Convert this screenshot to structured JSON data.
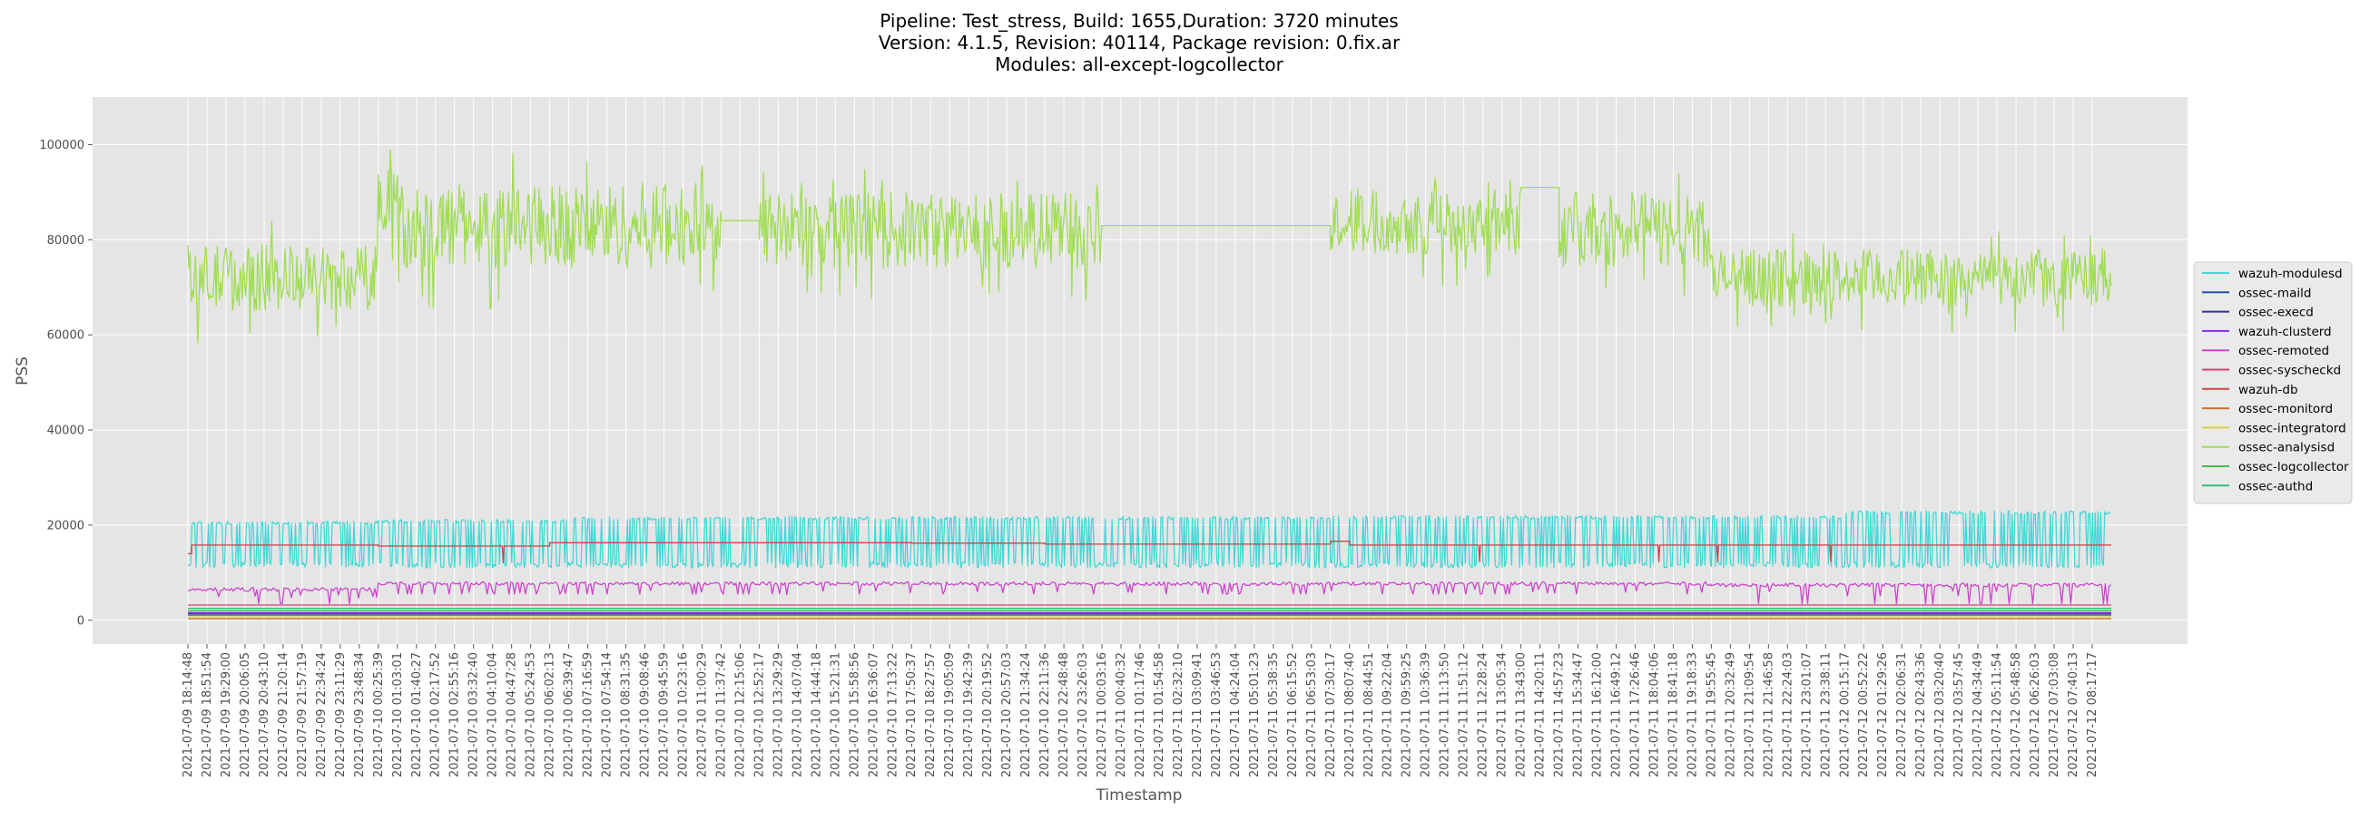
{
  "chart_data": {
    "type": "line",
    "title": "Pipeline: Test_stress, Build: 1655,Duration: 3720 minutes\nVersion: 4.1.5, Revision: 40114, Package revision: 0.fix.ar\nModules: all-except-logcollector",
    "title_lines": [
      "Pipeline: Test_stress, Build: 1655,Duration: 3720 minutes",
      "Version: 4.1.5, Revision: 40114, Package revision: 0.fix.ar",
      "Modules: all-except-logcollector"
    ],
    "xlabel": "Timestamp",
    "ylabel": "PSS",
    "ylim": [
      -5000,
      110000
    ],
    "y_ticks": [
      0,
      20000,
      40000,
      60000,
      80000,
      100000
    ],
    "grid": true,
    "legend_position": "center-right",
    "plot_background": "#e5e5e5",
    "x_ticks": [
      "2021-07-09 18:14:48",
      "2021-07-09 18:51:54",
      "2021-07-09 19:29:00",
      "2021-07-09 20:06:05",
      "2021-07-09 20:43:10",
      "2021-07-09 21:20:14",
      "2021-07-09 21:57:19",
      "2021-07-09 22:34:24",
      "2021-07-09 23:11:29",
      "2021-07-09 23:48:34",
      "2021-07-10 00:25:39",
      "2021-07-10 01:03:01",
      "2021-07-10 01:40:27",
      "2021-07-10 02:17:52",
      "2021-07-10 02:55:16",
      "2021-07-10 03:32:40",
      "2021-07-10 04:10:04",
      "2021-07-10 04:47:28",
      "2021-07-10 05:24:53",
      "2021-07-10 06:02:13",
      "2021-07-10 06:39:47",
      "2021-07-10 07:16:59",
      "2021-07-10 07:54:14",
      "2021-07-10 08:31:35",
      "2021-07-10 09:08:46",
      "2021-07-10 09:45:59",
      "2021-07-10 10:23:16",
      "2021-07-10 11:00:29",
      "2021-07-10 11:37:42",
      "2021-07-10 12:15:06",
      "2021-07-10 12:52:17",
      "2021-07-10 13:29:29",
      "2021-07-10 14:07:04",
      "2021-07-10 14:44:18",
      "2021-07-10 15:21:31",
      "2021-07-10 15:58:56",
      "2021-07-10 16:36:07",
      "2021-07-10 17:13:22",
      "2021-07-10 17:50:37",
      "2021-07-10 18:27:57",
      "2021-07-10 19:05:09",
      "2021-07-10 19:42:39",
      "2021-07-10 20:19:52",
      "2021-07-10 20:57:03",
      "2021-07-10 21:34:24",
      "2021-07-10 22:11:36",
      "2021-07-10 22:48:48",
      "2021-07-10 23:26:03",
      "2021-07-11 00:03:16",
      "2021-07-11 00:40:32",
      "2021-07-11 01:17:46",
      "2021-07-11 01:54:58",
      "2021-07-11 02:32:10",
      "2021-07-11 03:09:41",
      "2021-07-11 03:46:53",
      "2021-07-11 04:24:04",
      "2021-07-11 05:01:23",
      "2021-07-11 05:38:35",
      "2021-07-11 06:15:52",
      "2021-07-11 06:53:03",
      "2021-07-11 07:30:17",
      "2021-07-11 08:07:40",
      "2021-07-11 08:44:51",
      "2021-07-11 09:22:04",
      "2021-07-11 09:59:25",
      "2021-07-11 10:36:39",
      "2021-07-11 11:13:50",
      "2021-07-11 11:51:12",
      "2021-07-11 12:28:24",
      "2021-07-11 13:05:34",
      "2021-07-11 13:43:00",
      "2021-07-11 14:20:11",
      "2021-07-11 14:57:23",
      "2021-07-11 15:34:47",
      "2021-07-11 16:12:00",
      "2021-07-11 16:49:12",
      "2021-07-11 17:26:46",
      "2021-07-11 18:04:06",
      "2021-07-11 18:41:18",
      "2021-07-11 19:18:33",
      "2021-07-11 19:55:45",
      "2021-07-11 20:32:49",
      "2021-07-11 21:09:54",
      "2021-07-11 21:46:58",
      "2021-07-11 22:24:03",
      "2021-07-11 23:01:07",
      "2021-07-11 23:38:11",
      "2021-07-12 00:15:17",
      "2021-07-12 00:52:22",
      "2021-07-12 01:29:26",
      "2021-07-12 02:06:31",
      "2021-07-12 02:43:36",
      "2021-07-12 03:20:40",
      "2021-07-12 03:57:45",
      "2021-07-12 04:34:49",
      "2021-07-12 05:11:54",
      "2021-07-12 05:48:58",
      "2021-07-12 06:26:03",
      "2021-07-12 07:03:08",
      "2021-07-12 07:40:13",
      "2021-07-12 08:17:17"
    ],
    "series": [
      {
        "name": "wazuh-modulesd",
        "color": "#40d8d8",
        "pattern": "band",
        "low": 11000,
        "high": 21000,
        "segments": [
          [
            0,
            10,
            20800
          ],
          [
            10,
            20,
            21200
          ],
          [
            20,
            60,
            21800
          ],
          [
            60,
            80,
            22000
          ],
          [
            80,
            87,
            22000
          ],
          [
            87,
            101,
            23000
          ]
        ]
      },
      {
        "name": "ossec-maild",
        "color": "#2050b0",
        "pattern": "flat",
        "segments": [
          [
            0,
            101,
            1400
          ]
        ]
      },
      {
        "name": "ossec-execd",
        "color": "#30309a",
        "pattern": "flat",
        "segments": [
          [
            0,
            101,
            1100
          ]
        ]
      },
      {
        "name": "wazuh-clusterd",
        "color": "#8a2be2",
        "pattern": "flat",
        "segments": [
          [
            0,
            101,
            1600
          ]
        ]
      },
      {
        "name": "ossec-remoted",
        "color": "#cc44cc",
        "pattern": "dips",
        "segments": [
          [
            0,
            10,
            6500,
            3500
          ],
          [
            10,
            80,
            7700,
            5500
          ],
          [
            80,
            101,
            7400,
            3500
          ]
        ]
      },
      {
        "name": "ossec-syscheckd",
        "color": "#d8407a",
        "pattern": "flat",
        "segments": [
          [
            0,
            101,
            3200
          ]
        ]
      },
      {
        "name": "wazuh-db",
        "color": "#cc4444",
        "pattern": "steps",
        "segments": [
          [
            0,
            0.2,
            14000
          ],
          [
            0.2,
            10,
            15800
          ],
          [
            10,
            19,
            15600
          ],
          [
            19,
            38,
            16300
          ],
          [
            38,
            45,
            16200
          ],
          [
            45,
            60,
            16000
          ],
          [
            60,
            61,
            16600
          ],
          [
            61,
            101,
            15800
          ]
        ]
      },
      {
        "name": "ossec-monitord",
        "color": "#d07030",
        "pattern": "flat",
        "segments": [
          [
            0,
            101,
            300
          ]
        ]
      },
      {
        "name": "ossec-integratord",
        "color": "#d8d040",
        "pattern": "flat",
        "segments": [
          [
            0,
            101,
            700
          ]
        ]
      },
      {
        "name": "ossec-analysisd",
        "color": "#a0dd55",
        "pattern": "noisy",
        "segments": [
          [
            0,
            10,
            72000,
            7000
          ],
          [
            10,
            11,
            90000,
            8000
          ],
          [
            11,
            28,
            83000,
            9000
          ],
          [
            28,
            30,
            84000,
            0
          ],
          [
            30,
            48,
            82000,
            8000
          ],
          [
            48,
            60,
            83000,
            0
          ],
          [
            60,
            70,
            84000,
            7000
          ],
          [
            70,
            72,
            91000,
            0
          ],
          [
            72,
            80,
            82000,
            8000
          ],
          [
            80,
            101,
            72000,
            6000
          ]
        ]
      },
      {
        "name": "ossec-logcollector",
        "color": "#44bb44",
        "pattern": "flat",
        "segments": [
          [
            0,
            101,
            2000
          ]
        ]
      },
      {
        "name": "ossec-authd",
        "color": "#33bb77",
        "pattern": "flat",
        "segments": [
          [
            0,
            101,
            2500
          ]
        ]
      }
    ]
  }
}
